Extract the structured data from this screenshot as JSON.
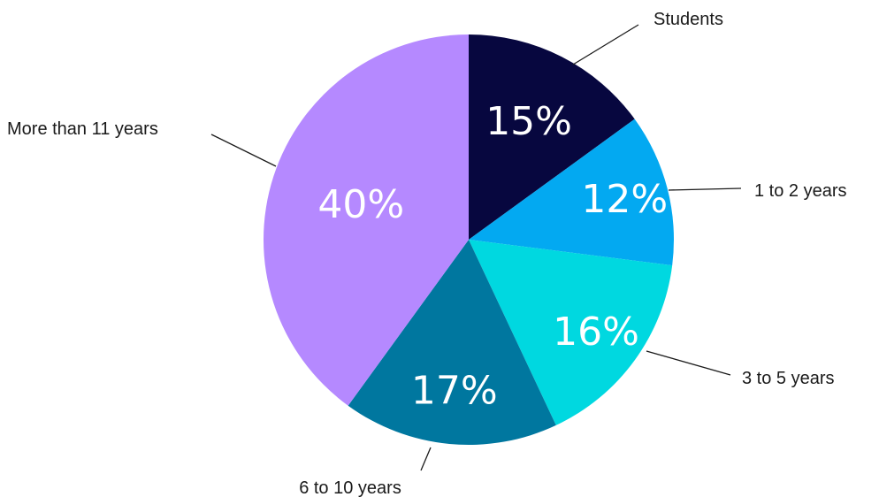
{
  "chart_data": {
    "type": "pie",
    "title": "",
    "start_angle_deg": 0,
    "direction": "clockwise",
    "slices": [
      {
        "label": "Students",
        "value": 15,
        "value_label": "15%",
        "color": "#07073f"
      },
      {
        "label": "1 to 2 years",
        "value": 12,
        "value_label": "12%",
        "color": "#03a9f1"
      },
      {
        "label": "3 to 5 years",
        "value": 16,
        "value_label": "16%",
        "color": "#00d8e0"
      },
      {
        "label": "6 to 10 years",
        "value": 17,
        "value_label": "17%",
        "color": "#00779f"
      },
      {
        "label": "More than 11 years",
        "value": 40,
        "value_label": "40%",
        "color": "#b589ff"
      }
    ]
  }
}
